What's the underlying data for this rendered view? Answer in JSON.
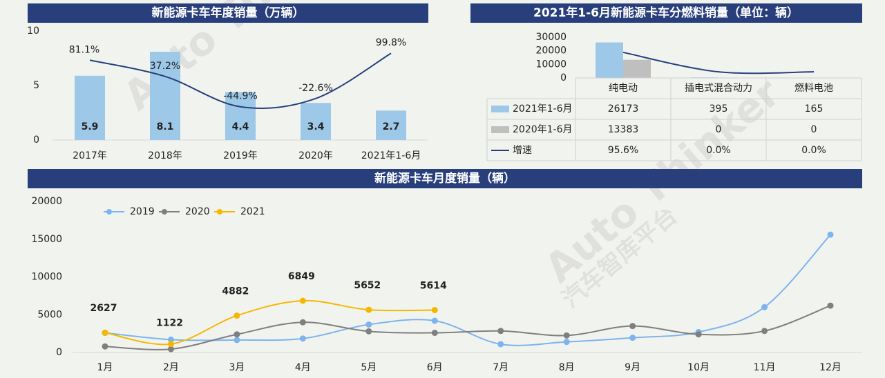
{
  "watermark": [
    "Auto Thinker",
    "汽车智库平台"
  ],
  "chart_data": [
    {
      "type": "bar",
      "title": "新能源卡车年度销量（万辆）",
      "categories": [
        "2017年",
        "2018年",
        "2019年",
        "2020年",
        "2021年1-6月"
      ],
      "series": [
        {
          "type": "bar",
          "color": "#9dc8e8",
          "values": [
            5.9,
            8.1,
            4.4,
            3.4,
            2.7
          ]
        },
        {
          "type": "line",
          "axis": "y2",
          "color": "#283f7c",
          "values": [
            81.1,
            37.2,
            -44.9,
            -22.6,
            99.8
          ],
          "value_labels": [
            "81.1%",
            "37.2%",
            "-44.9%",
            "-22.6%",
            "99.8%"
          ]
        }
      ],
      "ylim": [
        0,
        10
      ],
      "yticks": [
        0,
        5,
        10
      ],
      "y2lim": [
        -135,
        160
      ]
    },
    {
      "type": "bar",
      "title": "2021年1-6月新能源卡车分燃料销量（单位：辆）",
      "categories": [
        "纯电动",
        "插电式混合动力",
        "燃料电池"
      ],
      "series": [
        {
          "type": "bar",
          "name": "2021年1-6月",
          "color": "#9dc8e8",
          "values": [
            26173,
            395,
            165
          ]
        },
        {
          "type": "bar",
          "name": "2020年1-6月",
          "color": "#bfbfbf",
          "values": [
            13383,
            0,
            0
          ]
        },
        {
          "type": "line",
          "axis": "y2",
          "name": "增速",
          "color": "#283f7c",
          "values": [
            95.6,
            0,
            0
          ],
          "value_labels": [
            "95.6%",
            "0.0%",
            "0.0%"
          ]
        }
      ],
      "ylim": [
        0,
        30000
      ],
      "yticks": [
        0,
        10000,
        20000,
        30000
      ],
      "y2lim": [
        -30,
        170
      ],
      "data_table": true
    },
    {
      "type": "line",
      "title": "新能源卡车月度销量（辆）",
      "categories": [
        "1月",
        "2月",
        "3月",
        "4月",
        "5月",
        "6月",
        "7月",
        "8月",
        "9月",
        "10月",
        "11月",
        "12月"
      ],
      "series": [
        {
          "name": "2019",
          "color": "#7db4ee",
          "values": [
            2600,
            1700,
            1650,
            1850,
            3700,
            4200,
            1100,
            1400,
            1950,
            2700,
            6000,
            15600
          ]
        },
        {
          "name": "2020",
          "color": "#7f7f7f",
          "values": [
            800,
            450,
            2400,
            4000,
            2800,
            2600,
            2850,
            2250,
            3500,
            2400,
            2850,
            6200
          ]
        },
        {
          "name": "2021",
          "color": "#f5b800",
          "values": [
            2627,
            1122,
            4882,
            6849,
            5652,
            5614,
            null,
            null,
            null,
            null,
            null,
            null
          ],
          "data_labels": true
        }
      ],
      "ylim": [
        0,
        20000
      ],
      "yticks": [
        0,
        5000,
        10000,
        15000,
        20000
      ],
      "legend": "top-left"
    }
  ]
}
